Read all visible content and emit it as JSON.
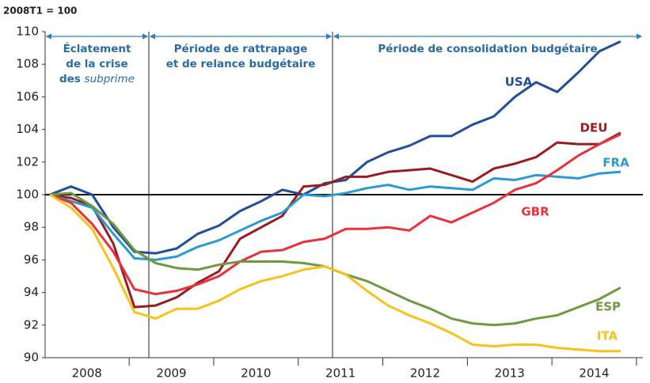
{
  "chart_data": {
    "type": "line",
    "y_axis_label": "2008T1 = 100",
    "categories": [
      "2008",
      null,
      null,
      null,
      "2009",
      null,
      null,
      null,
      "2010",
      null,
      null,
      null,
      "2011",
      null,
      null,
      null,
      "2012",
      null,
      null,
      null,
      "2013",
      null,
      null,
      null,
      "2014",
      null,
      null,
      null
    ],
    "ylim": [
      90,
      110
    ],
    "yticks": [
      90,
      92,
      94,
      96,
      98,
      100,
      102,
      104,
      106,
      108,
      110
    ],
    "reference_line": 100,
    "periods": [
      {
        "lines": [
          "Éclatement",
          "de la crise",
          "des "
        ],
        "emphasis": "subprime"
      },
      {
        "lines": [
          "Période de rattrapage",
          "et de relance budgétaire"
        ]
      },
      {
        "lines": [
          "Période de consolidation budgétaire"
        ]
      }
    ],
    "series": [
      {
        "name": "USA",
        "color": "#1f4e9a",
        "values": [
          100,
          100.5,
          100,
          98,
          96.5,
          96.4,
          96.7,
          97.6,
          98.1,
          99.0,
          99.6,
          100.3,
          100.0,
          100.7,
          100.9,
          102.0,
          102.6,
          103.0,
          103.6,
          103.6,
          104.3,
          104.8,
          106.0,
          106.9,
          106.3,
          107.5,
          108.8,
          109.4
        ]
      },
      {
        "name": "DEU",
        "color": "#9b1c20",
        "values": [
          100,
          99.8,
          99.3,
          97.0,
          93.1,
          93.2,
          93.7,
          94.6,
          95.3,
          97.3,
          98.0,
          98.7,
          100.5,
          100.6,
          101.1,
          101.1,
          101.4,
          101.5,
          101.6,
          101.2,
          100.8,
          101.6,
          101.9,
          102.3,
          103.2,
          103.1,
          103.1,
          103.8
        ]
      },
      {
        "name": "FRA",
        "color": "#2a9ad6",
        "values": [
          100,
          99.6,
          99.2,
          97.6,
          96.1,
          96.0,
          96.2,
          96.8,
          97.2,
          97.8,
          98.4,
          98.9,
          100.0,
          99.9,
          100.1,
          100.4,
          100.6,
          100.3,
          100.5,
          100.4,
          100.3,
          101.0,
          100.9,
          101.2,
          101.1,
          101.0,
          101.3,
          101.4
        ]
      },
      {
        "name": "GBR",
        "color": "#e8313a",
        "values": [
          100,
          99.5,
          98.2,
          96.5,
          94.2,
          93.9,
          94.1,
          94.5,
          95.0,
          95.9,
          96.5,
          96.6,
          97.1,
          97.3,
          97.9,
          97.9,
          98.0,
          97.8,
          98.7,
          98.3,
          98.9,
          99.5,
          100.3,
          100.7,
          101.5,
          102.4,
          103.1,
          103.7
        ]
      },
      {
        "name": "ESP",
        "color": "#6f9a3c",
        "values": [
          100,
          100.1,
          99.3,
          98.2,
          96.6,
          95.8,
          95.5,
          95.4,
          95.7,
          95.9,
          95.9,
          95.9,
          95.8,
          95.6,
          95.1,
          94.7,
          94.1,
          93.5,
          93.0,
          92.4,
          92.1,
          92.0,
          92.1,
          92.4,
          92.6,
          93.1,
          93.6,
          94.3
        ]
      },
      {
        "name": "ITA",
        "color": "#f7c31a",
        "values": [
          100,
          99.2,
          97.9,
          95.5,
          92.8,
          92.4,
          93.0,
          93.0,
          93.5,
          94.2,
          94.7,
          95.0,
          95.4,
          95.6,
          95.1,
          94.1,
          93.2,
          92.6,
          92.1,
          91.5,
          90.8,
          90.7,
          90.8,
          90.8,
          90.6,
          90.5,
          90.4,
          90.4
        ]
      }
    ]
  }
}
